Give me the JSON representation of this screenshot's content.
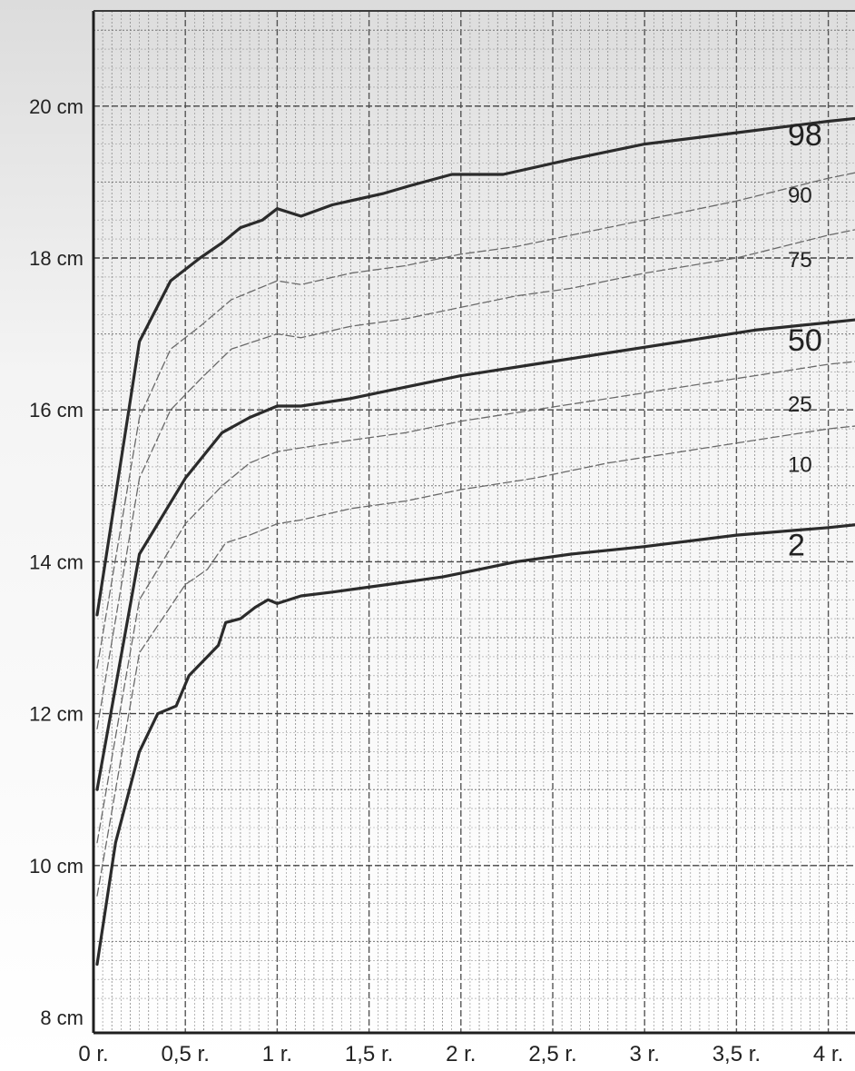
{
  "chart_data": {
    "type": "line",
    "title": "",
    "xlabel": "",
    "ylabel": "",
    "xlim": [
      0,
      4.2
    ],
    "ylim": [
      8,
      21.2
    ],
    "grid": true,
    "x_ticks": [
      {
        "value": 0,
        "label": "0 r."
      },
      {
        "value": 0.5,
        "label": "0,5 r."
      },
      {
        "value": 1,
        "label": "1 r."
      },
      {
        "value": 1.5,
        "label": "1,5 r."
      },
      {
        "value": 2,
        "label": "2 r."
      },
      {
        "value": 2.5,
        "label": "2,5 r."
      },
      {
        "value": 3,
        "label": "3 r."
      },
      {
        "value": 3.5,
        "label": "3,5 r."
      },
      {
        "value": 4,
        "label": "4 r."
      }
    ],
    "y_ticks": [
      {
        "value": 8,
        "label": "8 cm"
      },
      {
        "value": 10,
        "label": "10 cm"
      },
      {
        "value": 12,
        "label": "12 cm"
      },
      {
        "value": 14,
        "label": "14 cm"
      },
      {
        "value": 16,
        "label": "16 cm"
      },
      {
        "value": 18,
        "label": "18 cm"
      },
      {
        "value": 20,
        "label": "20 cm"
      }
    ],
    "series": [
      {
        "name": "98",
        "style": "solid",
        "x": [
          0.02,
          0.25,
          0.42,
          0.58,
          0.7,
          0.8,
          0.92,
          1.0,
          1.13,
          1.3,
          1.58,
          1.72,
          1.95,
          2.23,
          2.6,
          3.0,
          3.5,
          4.0,
          4.2
        ],
        "y": [
          13.3,
          16.9,
          17.7,
          18.0,
          18.2,
          18.4,
          18.5,
          18.65,
          18.55,
          18.7,
          18.85,
          18.95,
          19.1,
          19.1,
          19.3,
          19.5,
          19.65,
          19.8,
          19.85
        ]
      },
      {
        "name": "90",
        "style": "dashed",
        "x": [
          0.02,
          0.25,
          0.42,
          0.58,
          0.75,
          1.0,
          1.13,
          1.4,
          1.7,
          2.0,
          2.3,
          2.6,
          3.0,
          3.5,
          4.0,
          4.2
        ],
        "y": [
          12.6,
          15.9,
          16.8,
          17.1,
          17.45,
          17.7,
          17.65,
          17.8,
          17.9,
          18.05,
          18.15,
          18.3,
          18.5,
          18.75,
          19.05,
          19.15
        ]
      },
      {
        "name": "75",
        "style": "dashed",
        "x": [
          0.02,
          0.25,
          0.42,
          0.58,
          0.75,
          1.0,
          1.13,
          1.4,
          1.7,
          2.0,
          2.3,
          2.6,
          3.0,
          3.5,
          4.0,
          4.2
        ],
        "y": [
          11.8,
          15.1,
          16.0,
          16.4,
          16.8,
          17.0,
          16.95,
          17.1,
          17.2,
          17.35,
          17.5,
          17.6,
          17.8,
          18.0,
          18.3,
          18.4
        ]
      },
      {
        "name": "50",
        "style": "solid",
        "x": [
          0.02,
          0.25,
          0.5,
          0.7,
          0.85,
          1.0,
          1.13,
          1.4,
          1.7,
          2.0,
          2.4,
          2.8,
          3.2,
          3.6,
          4.0,
          4.2
        ],
        "y": [
          11.0,
          14.1,
          15.1,
          15.7,
          15.9,
          16.05,
          16.05,
          16.15,
          16.3,
          16.45,
          16.6,
          16.75,
          16.9,
          17.05,
          17.15,
          17.2
        ]
      },
      {
        "name": "25",
        "style": "dashed",
        "x": [
          0.02,
          0.25,
          0.5,
          0.7,
          0.85,
          1.0,
          1.13,
          1.4,
          1.7,
          2.0,
          2.4,
          2.8,
          3.2,
          3.6,
          4.0,
          4.2
        ],
        "y": [
          10.3,
          13.5,
          14.5,
          15.0,
          15.3,
          15.45,
          15.5,
          15.6,
          15.7,
          15.85,
          16.0,
          16.15,
          16.3,
          16.45,
          16.6,
          16.65
        ]
      },
      {
        "name": "10",
        "style": "dashed",
        "x": [
          0.02,
          0.25,
          0.5,
          0.62,
          0.72,
          0.85,
          1.0,
          1.13,
          1.4,
          1.7,
          2.0,
          2.4,
          2.8,
          3.2,
          3.6,
          4.0,
          4.2
        ],
        "y": [
          9.6,
          12.8,
          13.7,
          13.9,
          14.25,
          14.35,
          14.5,
          14.55,
          14.7,
          14.8,
          14.95,
          15.1,
          15.3,
          15.45,
          15.6,
          15.75,
          15.8
        ]
      },
      {
        "name": "2",
        "style": "solid",
        "x": [
          0.02,
          0.12,
          0.25,
          0.35,
          0.45,
          0.52,
          0.6,
          0.68,
          0.72,
          0.8,
          0.88,
          0.95,
          1.0,
          1.13,
          1.3,
          1.6,
          1.75,
          1.9,
          2.1,
          2.3,
          2.6,
          3.0,
          3.5,
          4.0,
          4.2
        ],
        "y": [
          8.7,
          10.3,
          11.5,
          12.0,
          12.1,
          12.5,
          12.7,
          12.9,
          13.2,
          13.25,
          13.4,
          13.5,
          13.45,
          13.55,
          13.6,
          13.7,
          13.75,
          13.8,
          13.9,
          14.0,
          14.1,
          14.2,
          14.35,
          14.45,
          14.5
        ]
      }
    ]
  }
}
